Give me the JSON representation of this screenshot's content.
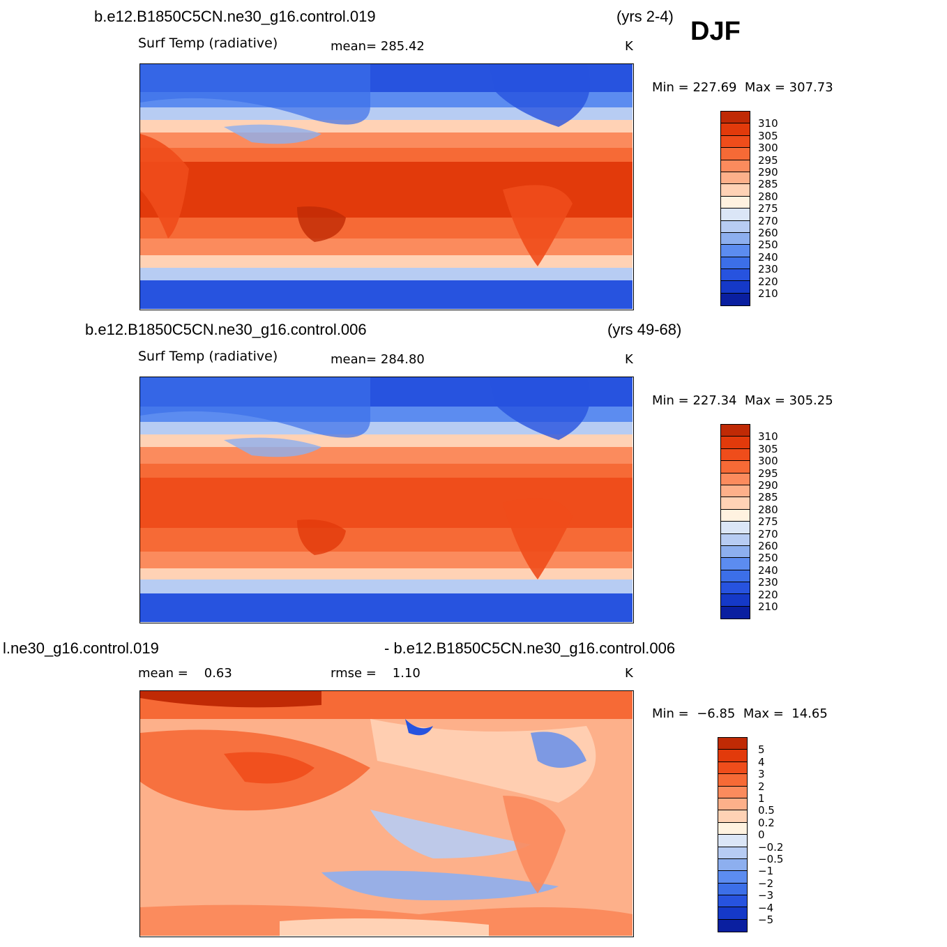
{
  "season": "DJF",
  "colors": {
    "abs_scale": [
      "#050d6b",
      "#0a1fa0",
      "#1539c8",
      "#2753df",
      "#3c6fe8",
      "#5c8cf0",
      "#8dafef",
      "#b7ccf3",
      "#dbe6f7",
      "#fff2e0",
      "#ffd2b5",
      "#fdb08a",
      "#fb8b5d",
      "#f66a36",
      "#ef4d1b",
      "#e23a0b",
      "#c02a05",
      "#8e1603"
    ],
    "diff_scale": [
      "#050d6b",
      "#0a1fa0",
      "#1539c8",
      "#2753df",
      "#3c6fe8",
      "#5c8cf0",
      "#8dafef",
      "#b7ccf3",
      "#dbe6f7",
      "#fff2e0",
      "#ffd2b5",
      "#fdb08a",
      "#fb8b5d",
      "#f66a36",
      "#ef4d1b",
      "#e23a0b",
      "#c02a05",
      "#8e1603"
    ],
    "land_outline": "#000000"
  },
  "panels": [
    {
      "case": "b.e12.B1850C5CN.ne30_g16.control.019",
      "years": "(yrs 2-4)",
      "variable": "Surf Temp (radiative)",
      "mean_label": "mean=",
      "mean_value": "285.42",
      "units": "K",
      "min_label": "Min",
      "min_value": "227.69",
      "max_label": "Max",
      "max_value": "307.73",
      "colorbar_labels": [
        "310",
        "305",
        "300",
        "295",
        "290",
        "285",
        "280",
        "275",
        "270",
        "260",
        "250",
        "240",
        "230",
        "220",
        "210"
      ]
    },
    {
      "case": "b.e12.B1850C5CN.ne30_g16.control.006",
      "years": "(yrs 49-68)",
      "variable": "Surf Temp (radiative)",
      "mean_label": "mean=",
      "mean_value": "284.80",
      "units": "K",
      "min_label": "Min",
      "min_value": "227.34",
      "max_label": "Max",
      "max_value": "305.25",
      "colorbar_labels": [
        "310",
        "305",
        "300",
        "295",
        "290",
        "285",
        "280",
        "275",
        "270",
        "260",
        "250",
        "240",
        "230",
        "220",
        "210"
      ]
    },
    {
      "case_left": "l.ne30_g16.control.019",
      "case_right": "- b.e12.B1850C5CN.ne30_g16.control.006",
      "mean_label": "mean =",
      "mean_value": "0.63",
      "rmse_label": "rmse =",
      "rmse_value": "1.10",
      "units": "K",
      "min_label": "Min",
      "min_value": "−6.85",
      "max_label": "Max",
      "max_value": "14.65",
      "colorbar_labels": [
        "5",
        "4",
        "3",
        "2",
        "1",
        "0.5",
        "0.2",
        "0",
        "−0.2",
        "−0.5",
        "−1",
        "−2",
        "−3",
        "−4",
        "−5"
      ]
    }
  ]
}
